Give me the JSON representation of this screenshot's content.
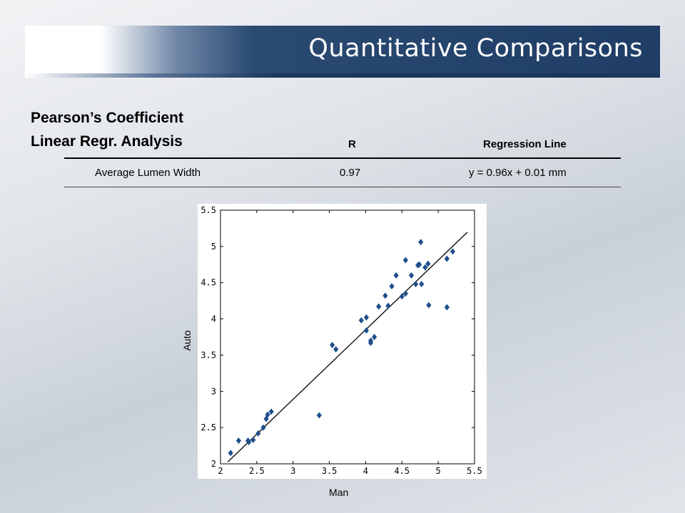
{
  "slide": {
    "title": "Quantitative Comparisons",
    "heading_line1": "Pearson’s Coefficient",
    "heading_line2": "Linear Regr. Analysis"
  },
  "table": {
    "headers": [
      "R",
      "Regression Line"
    ],
    "rows": [
      {
        "label": "Average Lumen Width",
        "r": "0.97",
        "regression": "y = 0.96x + 0.01 mm"
      }
    ]
  },
  "colors": {
    "title_bar": "#1f3d66",
    "marker": "#1f4e8c",
    "line": "#000000"
  },
  "chart_data": {
    "type": "scatter",
    "xlabel": "Man",
    "ylabel": "Auto",
    "xlim": [
      2,
      5.5
    ],
    "ylim": [
      2,
      5.5
    ],
    "x_ticks": [
      "2",
      "2.5",
      "3",
      "3.5",
      "4",
      "4.5",
      "5",
      "5.5"
    ],
    "y_ticks": [
      "2",
      "2.5",
      "3",
      "3.5",
      "4",
      "4.5",
      "5",
      "5.5"
    ],
    "marker": "diamond",
    "points": [
      [
        2.14,
        2.15
      ],
      [
        2.25,
        2.32
      ],
      [
        2.38,
        2.32
      ],
      [
        2.39,
        2.3
      ],
      [
        2.45,
        2.33
      ],
      [
        2.52,
        2.42
      ],
      [
        2.59,
        2.5
      ],
      [
        2.63,
        2.62
      ],
      [
        2.65,
        2.68
      ],
      [
        2.7,
        2.72
      ],
      [
        3.36,
        2.67
      ],
      [
        3.54,
        3.64
      ],
      [
        3.59,
        3.58
      ],
      [
        3.94,
        3.98
      ],
      [
        4.01,
        4.02
      ],
      [
        4.01,
        3.84
      ],
      [
        4.07,
        3.7
      ],
      [
        4.07,
        3.67
      ],
      [
        4.12,
        3.75
      ],
      [
        4.18,
        4.17
      ],
      [
        4.27,
        4.32
      ],
      [
        4.31,
        4.18
      ],
      [
        4.36,
        4.45
      ],
      [
        4.42,
        4.6
      ],
      [
        4.5,
        4.31
      ],
      [
        4.55,
        4.35
      ],
      [
        4.55,
        4.81
      ],
      [
        4.63,
        4.6
      ],
      [
        4.69,
        4.48
      ],
      [
        4.72,
        4.74
      ],
      [
        4.74,
        4.75
      ],
      [
        4.76,
        5.06
      ],
      [
        4.77,
        4.48
      ],
      [
        4.82,
        4.71
      ],
      [
        4.86,
        4.76
      ],
      [
        4.87,
        4.19
      ],
      [
        5.12,
        4.83
      ],
      [
        5.12,
        4.16
      ],
      [
        5.2,
        4.93
      ]
    ],
    "regression": {
      "slope": 0.96,
      "intercept": 0.01,
      "x_range": [
        2.1,
        5.5
      ]
    }
  }
}
